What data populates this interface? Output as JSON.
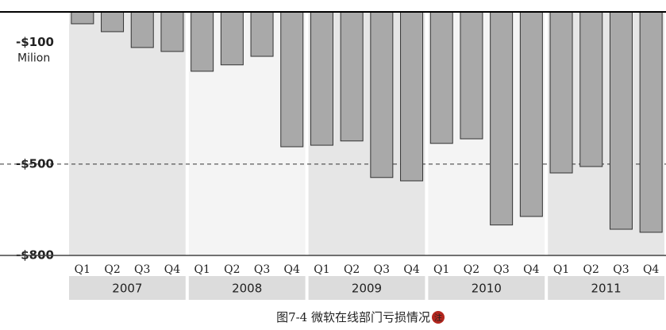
{
  "chart_data": {
    "type": "bar",
    "unit_label": "Milion",
    "caption": "图7-4 微软在线部门亏损情况",
    "caption_icon": "注",
    "categories": [
      "Q1",
      "Q2",
      "Q3",
      "Q4",
      "Q1",
      "Q2",
      "Q3",
      "Q4",
      "Q1",
      "Q2",
      "Q3",
      "Q4",
      "Q1",
      "Q2",
      "Q3",
      "Q4",
      "Q1",
      "Q2",
      "Q3",
      "Q4"
    ],
    "years": [
      "2007",
      "2008",
      "2009",
      "2010",
      "2011"
    ],
    "values": [
      -39,
      -65,
      -117,
      -130,
      -195,
      -174,
      -146,
      -443,
      -438,
      -424,
      -544,
      -555,
      -432,
      -417,
      -700,
      -672,
      -529,
      -508,
      -714,
      -724
    ],
    "color": "#a9a9a9",
    "ylim": [
      -800,
      0
    ],
    "yticks": [
      {
        "value": -100,
        "label": "-$100"
      },
      {
        "value": -500,
        "label": "-$500"
      },
      {
        "value": -800,
        "label": "-$800"
      }
    ],
    "reference_line": -500
  }
}
